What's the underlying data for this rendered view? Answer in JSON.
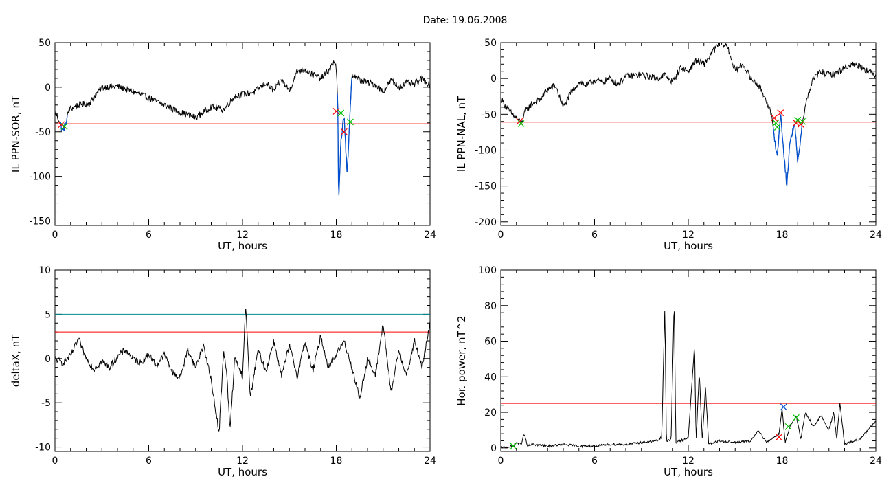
{
  "figure": {
    "title": "Date:  19.06.2008"
  },
  "colors": {
    "trace": "#000000",
    "threshold": "#ff0000",
    "highlight": "#0050d0",
    "marker_red": "#ff0000",
    "marker_green": "#00c000",
    "marker_blue": "#0050d0",
    "teal_line": "#008c8c"
  },
  "chart_data": [
    {
      "id": "ppn-sor",
      "type": "line",
      "title": "",
      "xlabel": "UT, hours",
      "ylabel": "IL PPN-SOR, nT",
      "xlim": [
        0,
        24
      ],
      "ylim": [
        -155,
        50
      ],
      "xticks": [
        0,
        6,
        12,
        18,
        24
      ],
      "yticks": [
        50,
        0,
        -50,
        -100,
        -150
      ],
      "grid": false,
      "keypoints": [
        [
          0,
          -28
        ],
        [
          0.3,
          -38
        ],
        [
          0.5,
          -50
        ],
        [
          0.7,
          -40
        ],
        [
          0.9,
          -25
        ],
        [
          1.5,
          -20
        ],
        [
          2.2,
          -18
        ],
        [
          3,
          0
        ],
        [
          4,
          1
        ],
        [
          5,
          -5
        ],
        [
          6,
          -12
        ],
        [
          7,
          -20
        ],
        [
          8,
          -28
        ],
        [
          9,
          -34
        ],
        [
          10,
          -22
        ],
        [
          10.8,
          -25
        ],
        [
          11.5,
          -10
        ],
        [
          12,
          -8
        ],
        [
          12.8,
          -5
        ],
        [
          13.5,
          5
        ],
        [
          14,
          -4
        ],
        [
          14.5,
          8
        ],
        [
          15,
          -4
        ],
        [
          15.5,
          18
        ],
        [
          16,
          20
        ],
        [
          16.5,
          14
        ],
        [
          17,
          10
        ],
        [
          17.5,
          18
        ],
        [
          17.9,
          30
        ],
        [
          18,
          20
        ],
        [
          18.1,
          -20
        ],
        [
          18.15,
          -135
        ],
        [
          18.3,
          -60
        ],
        [
          18.5,
          -30
        ],
        [
          18.7,
          -100
        ],
        [
          18.85,
          -42
        ],
        [
          19,
          15
        ],
        [
          19.5,
          8
        ],
        [
          20,
          5
        ],
        [
          20.5,
          3
        ],
        [
          21,
          -5
        ],
        [
          21.5,
          8
        ],
        [
          22,
          0
        ],
        [
          22.5,
          5
        ],
        [
          23,
          3
        ],
        [
          23.5,
          10
        ],
        [
          24,
          2
        ]
      ],
      "highlight_ranges": [
        [
          0.3,
          0.8
        ],
        [
          18.05,
          19.0
        ]
      ],
      "thresholds": [
        {
          "value": -41,
          "color": "red"
        }
      ],
      "markers": [
        {
          "x": 0.4,
          "y": -42,
          "color": "red"
        },
        {
          "x": 0.6,
          "y": -44,
          "color": "green"
        },
        {
          "x": 18.0,
          "y": -27,
          "color": "red"
        },
        {
          "x": 18.3,
          "y": -29,
          "color": "green"
        },
        {
          "x": 18.5,
          "y": -50,
          "color": "red"
        },
        {
          "x": 18.9,
          "y": -39,
          "color": "green"
        }
      ]
    },
    {
      "id": "ppn-nal",
      "type": "line",
      "title": "",
      "xlabel": "UT, hours",
      "ylabel": "IL PPN-NAL, nT",
      "xlim": [
        0,
        24
      ],
      "ylim": [
        -205,
        50
      ],
      "xticks": [
        0,
        6,
        12,
        18,
        24
      ],
      "yticks": [
        50,
        0,
        -50,
        -100,
        -150,
        -200
      ],
      "grid": false,
      "keypoints": [
        [
          0,
          -28
        ],
        [
          0.5,
          -45
        ],
        [
          1,
          -55
        ],
        [
          1.3,
          -62
        ],
        [
          1.6,
          -45
        ],
        [
          2,
          -35
        ],
        [
          2.5,
          -30
        ],
        [
          3,
          -15
        ],
        [
          3.5,
          -10
        ],
        [
          4,
          -40
        ],
        [
          4.5,
          -20
        ],
        [
          5,
          -5
        ],
        [
          5.5,
          -10
        ],
        [
          6,
          -2
        ],
        [
          6.5,
          -5
        ],
        [
          7,
          0
        ],
        [
          7.5,
          -8
        ],
        [
          8,
          3
        ],
        [
          9,
          5
        ],
        [
          10,
          0
        ],
        [
          10.5,
          5
        ],
        [
          11,
          -5
        ],
        [
          11.5,
          15
        ],
        [
          12,
          10
        ],
        [
          12.5,
          25
        ],
        [
          13,
          20
        ],
        [
          13.5,
          35
        ],
        [
          14,
          50
        ],
        [
          14.5,
          45
        ],
        [
          15,
          10
        ],
        [
          15.5,
          20
        ],
        [
          16,
          0
        ],
        [
          16.5,
          -10
        ],
        [
          17,
          -30
        ],
        [
          17.3,
          -50
        ],
        [
          17.5,
          -80
        ],
        [
          17.7,
          -110
        ],
        [
          17.9,
          -48
        ],
        [
          18.1,
          -100
        ],
        [
          18.3,
          -150
        ],
        [
          18.5,
          -90
        ],
        [
          18.8,
          -60
        ],
        [
          19,
          -120
        ],
        [
          19.3,
          -60
        ],
        [
          19.6,
          -28
        ],
        [
          20,
          0
        ],
        [
          20.5,
          10
        ],
        [
          21,
          5
        ],
        [
          21.5,
          8
        ],
        [
          22,
          15
        ],
        [
          22.5,
          20
        ],
        [
          23,
          18
        ],
        [
          23.5,
          10
        ],
        [
          24,
          5
        ]
      ],
      "highlight_ranges": [
        [
          17.4,
          19.3
        ]
      ],
      "thresholds": [
        {
          "value": -61,
          "color": "red"
        }
      ],
      "markers": [
        {
          "x": 1.2,
          "y": -60,
          "color": "red"
        },
        {
          "x": 1.3,
          "y": -63,
          "color": "green"
        },
        {
          "x": 17.5,
          "y": -55,
          "color": "red"
        },
        {
          "x": 17.6,
          "y": -62,
          "color": "green"
        },
        {
          "x": 17.9,
          "y": -48,
          "color": "red"
        },
        {
          "x": 17.7,
          "y": -68,
          "color": "green"
        },
        {
          "x": 18.9,
          "y": -62,
          "color": "red"
        },
        {
          "x": 19.0,
          "y": -58,
          "color": "green"
        },
        {
          "x": 19.2,
          "y": -64,
          "color": "red"
        },
        {
          "x": 19.3,
          "y": -60,
          "color": "green"
        }
      ]
    },
    {
      "id": "deltax",
      "type": "line",
      "title": "",
      "xlabel": "UT, hours",
      "ylabel": "deltaX, nT",
      "xlim": [
        0,
        24
      ],
      "ylim": [
        -10.5,
        10
      ],
      "xticks": [
        0,
        6,
        12,
        18,
        24
      ],
      "yticks": [
        10,
        5,
        0,
        -5,
        -10
      ],
      "grid": false,
      "keypoints": [
        [
          0,
          0
        ],
        [
          0.5,
          -0.5
        ],
        [
          1,
          0.3
        ],
        [
          1.5,
          2.2
        ],
        [
          2,
          0
        ],
        [
          2.5,
          -1.2
        ],
        [
          3,
          -0.3
        ],
        [
          3.5,
          -1
        ],
        [
          4,
          0.2
        ],
        [
          4.5,
          1
        ],
        [
          5,
          0
        ],
        [
          5.5,
          -0.5
        ],
        [
          6,
          0.5
        ],
        [
          6.5,
          -0.8
        ],
        [
          7,
          0.5
        ],
        [
          7.5,
          -1.5
        ],
        [
          8,
          -2.2
        ],
        [
          8.5,
          1
        ],
        [
          9,
          -1
        ],
        [
          9.5,
          1.5
        ],
        [
          10,
          -2.5
        ],
        [
          10.5,
          -8.4
        ],
        [
          10.8,
          1
        ],
        [
          11,
          -2
        ],
        [
          11.2,
          -8.1
        ],
        [
          11.5,
          0
        ],
        [
          12,
          -2
        ],
        [
          12.2,
          6
        ],
        [
          12.5,
          -4.5
        ],
        [
          13,
          1
        ],
        [
          13.5,
          -1.5
        ],
        [
          14,
          2
        ],
        [
          14.5,
          -2
        ],
        [
          15,
          1.5
        ],
        [
          15.5,
          -2
        ],
        [
          16,
          2
        ],
        [
          16.5,
          -1.5
        ],
        [
          17,
          2.5
        ],
        [
          17.5,
          -1
        ],
        [
          18,
          0.5
        ],
        [
          18.5,
          2
        ],
        [
          19,
          -1
        ],
        [
          19.5,
          -4.5
        ],
        [
          20,
          0
        ],
        [
          20.5,
          -2
        ],
        [
          21,
          4
        ],
        [
          21.5,
          -4
        ],
        [
          22,
          1
        ],
        [
          22.5,
          -2
        ],
        [
          23,
          2
        ],
        [
          23.5,
          -1
        ],
        [
          24,
          4
        ]
      ],
      "highlight_ranges": [],
      "thresholds": [
        {
          "value": 5,
          "color": "teal"
        },
        {
          "value": 3,
          "color": "red"
        }
      ],
      "markers": []
    },
    {
      "id": "hor-power",
      "type": "line",
      "title": "",
      "xlabel": "UT, hours",
      "ylabel": "Hor. power, nT^2",
      "xlim": [
        0,
        24
      ],
      "ylim": [
        -2,
        100
      ],
      "xticks": [
        0,
        6,
        12,
        18,
        24
      ],
      "yticks": [
        100,
        80,
        60,
        40,
        20,
        0
      ],
      "grid": false,
      "keypoints": [
        [
          0,
          0
        ],
        [
          0.8,
          1
        ],
        [
          1,
          3
        ],
        [
          1.3,
          2
        ],
        [
          1.5,
          8
        ],
        [
          1.7,
          1
        ],
        [
          2,
          2
        ],
        [
          3,
          1
        ],
        [
          4,
          2
        ],
        [
          5,
          1
        ],
        [
          6,
          1
        ],
        [
          7,
          2
        ],
        [
          8,
          2
        ],
        [
          9,
          3
        ],
        [
          10,
          4
        ],
        [
          10.3,
          6
        ],
        [
          10.5,
          80
        ],
        [
          10.6,
          4
        ],
        [
          10.9,
          5
        ],
        [
          11.1,
          84
        ],
        [
          11.2,
          3
        ],
        [
          11.5,
          4
        ],
        [
          12,
          6
        ],
        [
          12.4,
          58
        ],
        [
          12.5,
          3
        ],
        [
          12.7,
          43
        ],
        [
          12.9,
          4
        ],
        [
          13.1,
          35
        ],
        [
          13.3,
          2
        ],
        [
          14,
          4
        ],
        [
          15,
          3
        ],
        [
          16,
          4
        ],
        [
          16.5,
          10
        ],
        [
          17,
          3
        ],
        [
          17.8,
          8
        ],
        [
          18,
          22
        ],
        [
          18.2,
          3
        ],
        [
          18.5,
          12
        ],
        [
          18.9,
          18
        ],
        [
          19.2,
          5
        ],
        [
          19.5,
          20
        ],
        [
          20,
          12
        ],
        [
          20.5,
          18
        ],
        [
          21,
          10
        ],
        [
          21.3,
          20
        ],
        [
          21.5,
          5
        ],
        [
          21.7,
          25
        ],
        [
          22,
          2
        ],
        [
          23,
          5
        ],
        [
          24,
          15
        ]
      ],
      "highlight_ranges": [],
      "thresholds": [
        {
          "value": 25,
          "color": "red"
        }
      ],
      "markers": [
        {
          "x": 0.8,
          "y": 1,
          "color": "green"
        },
        {
          "x": 17.8,
          "y": 6,
          "color": "red"
        },
        {
          "x": 18.1,
          "y": 23,
          "color": "blue"
        },
        {
          "x": 18.4,
          "y": 12,
          "color": "green"
        },
        {
          "x": 18.9,
          "y": 17,
          "color": "green"
        }
      ]
    }
  ]
}
